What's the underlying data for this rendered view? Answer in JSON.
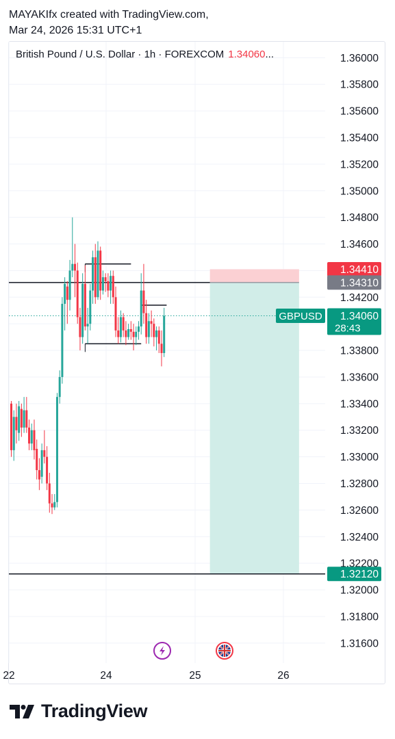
{
  "header": {
    "line1": "MAYAKIfx created with TradingView.com,",
    "line2": "Mar 24, 2026 15:31 UTC+1"
  },
  "legend": {
    "title": "British Pound / U.S. Dollar · 1h · FOREXCOM",
    "price": "1.34060",
    "ellipsis": "..."
  },
  "footer": {
    "brand": "TradingView",
    "logo_icon": "tradingview-logo-icon"
  },
  "colors": {
    "up": "#26a69a",
    "up_dark": "#089981",
    "down": "#f23645",
    "grid": "#f0f3fa",
    "target_zone": "#d1ede8",
    "stop_zone": "#fbd0d3",
    "text": "#131722",
    "gray_label": "#787b86"
  },
  "chart_data": {
    "type": "candlestick",
    "symbol": "GBPUSD",
    "title": "British Pound / U.S. Dollar · 1h · FOREXCOM",
    "x_ticks": [
      "22",
      "24",
      "25",
      "26"
    ],
    "y_ticks": [
      "1.36000",
      "1.35800",
      "1.35600",
      "1.35400",
      "1.35200",
      "1.35000",
      "1.34800",
      "1.34600",
      "1.34400",
      "1.34200",
      "1.34000",
      "1.33800",
      "1.33600",
      "1.33400",
      "1.33200",
      "1.33000",
      "1.32800",
      "1.32600",
      "1.32400",
      "1.32200",
      "1.32000",
      "1.31800",
      "1.31600"
    ],
    "ylim": [
      1.3145,
      1.3612
    ],
    "grid": true,
    "last_price": 1.3406,
    "last_price_label": "1.34060",
    "countdown": "28:43",
    "price_labels": [
      {
        "value": 1.3441,
        "text": "1.34410",
        "kind": "stop"
      },
      {
        "value": 1.3431,
        "text": "1.34310",
        "kind": "entry"
      },
      {
        "value": 1.3212,
        "text": "1.32120",
        "kind": "target"
      }
    ],
    "position": {
      "entry": 1.3431,
      "stop": 1.3441,
      "target": 1.3212,
      "start_index": 78,
      "end_index": 113
    },
    "levels": [
      {
        "value": 1.3431,
        "from_index": -1,
        "to_index": 78
      },
      {
        "value": 1.3212,
        "from_index": -1,
        "to_index": 128
      },
      {
        "value": 1.3445,
        "from_index": 29,
        "to_index": 47
      },
      {
        "value": 1.3385,
        "from_index": 29,
        "to_index": 51
      },
      {
        "value": 1.3414,
        "from_index": 51,
        "to_index": 61
      }
    ],
    "candles": [
      [
        1.334,
        1.3342,
        1.33,
        1.3305
      ],
      [
        1.3305,
        1.3335,
        1.3297,
        1.333
      ],
      [
        1.333,
        1.334,
        1.331,
        1.332
      ],
      [
        1.3318,
        1.3342,
        1.3312,
        1.3338
      ],
      [
        1.3336,
        1.334,
        1.3315,
        1.3322
      ],
      [
        1.3322,
        1.3345,
        1.3318,
        1.3335
      ],
      [
        1.3335,
        1.3345,
        1.3318,
        1.3322
      ],
      [
        1.3322,
        1.3328,
        1.3305,
        1.331
      ],
      [
        1.331,
        1.3325,
        1.3305,
        1.332
      ],
      [
        1.332,
        1.3328,
        1.3298,
        1.3305
      ],
      [
        1.3306,
        1.3313,
        1.3283,
        1.329
      ],
      [
        1.329,
        1.3299,
        1.3275,
        1.3283
      ],
      [
        1.3285,
        1.331,
        1.328,
        1.3305
      ],
      [
        1.3305,
        1.332,
        1.3295,
        1.33
      ],
      [
        1.33,
        1.3308,
        1.3275,
        1.328
      ],
      [
        1.328,
        1.3288,
        1.3258,
        1.3265
      ],
      [
        1.3265,
        1.3272,
        1.3257,
        1.3262
      ],
      [
        1.3262,
        1.3272,
        1.326,
        1.3266
      ],
      [
        1.3266,
        1.3348,
        1.3262,
        1.3345
      ],
      [
        1.3345,
        1.3365,
        1.334,
        1.336
      ],
      [
        1.336,
        1.342,
        1.3355,
        1.3415
      ],
      [
        1.3415,
        1.3435,
        1.3395,
        1.343
      ],
      [
        1.3428,
        1.3432,
        1.34,
        1.3418
      ],
      [
        1.3418,
        1.3448,
        1.341,
        1.344
      ],
      [
        1.344,
        1.348,
        1.3435,
        1.3445
      ],
      [
        1.3445,
        1.346,
        1.342,
        1.344
      ],
      [
        1.344,
        1.3446,
        1.34,
        1.3405
      ],
      [
        1.3405,
        1.3412,
        1.338,
        1.339
      ],
      [
        1.339,
        1.3438,
        1.3385,
        1.343
      ],
      [
        1.343,
        1.3444,
        1.3395,
        1.3398
      ],
      [
        1.3398,
        1.3412,
        1.3385,
        1.34
      ],
      [
        1.34,
        1.343,
        1.3395,
        1.3425
      ],
      [
        1.3425,
        1.3455,
        1.3415,
        1.345
      ],
      [
        1.345,
        1.346,
        1.3415,
        1.342
      ],
      [
        1.342,
        1.3462,
        1.3418,
        1.3455
      ],
      [
        1.3455,
        1.3458,
        1.3418,
        1.3425
      ],
      [
        1.3425,
        1.344,
        1.3422,
        1.3435
      ],
      [
        1.3435,
        1.3438,
        1.3424,
        1.3432
      ],
      [
        1.3432,
        1.3438,
        1.342,
        1.3425
      ],
      [
        1.3425,
        1.344,
        1.3415,
        1.3436
      ],
      [
        1.3436,
        1.344,
        1.3415,
        1.342
      ],
      [
        1.342,
        1.3428,
        1.339,
        1.3395
      ],
      [
        1.3395,
        1.3405,
        1.3385,
        1.339
      ],
      [
        1.339,
        1.341,
        1.3386,
        1.3405
      ],
      [
        1.3405,
        1.3408,
        1.339,
        1.3395
      ],
      [
        1.3395,
        1.3402,
        1.3384,
        1.339
      ],
      [
        1.339,
        1.34,
        1.3388,
        1.3396
      ],
      [
        1.3396,
        1.3402,
        1.3388,
        1.3394
      ],
      [
        1.3394,
        1.34,
        1.338,
        1.339
      ],
      [
        1.339,
        1.3398,
        1.3384,
        1.3394
      ],
      [
        1.3394,
        1.3402,
        1.3388,
        1.3398
      ],
      [
        1.3398,
        1.3438,
        1.3392,
        1.3425
      ],
      [
        1.3425,
        1.3445,
        1.34,
        1.3408
      ],
      [
        1.3408,
        1.3418,
        1.3385,
        1.339
      ],
      [
        1.339,
        1.3408,
        1.3385,
        1.3402
      ],
      [
        1.3402,
        1.341,
        1.339,
        1.34
      ],
      [
        1.34,
        1.3404,
        1.3383,
        1.339
      ],
      [
        1.339,
        1.3398,
        1.338,
        1.3395
      ],
      [
        1.3395,
        1.3398,
        1.3378,
        1.3385
      ],
      [
        1.3385,
        1.3395,
        1.3368,
        1.3378
      ],
      [
        1.3378,
        1.3412,
        1.3375,
        1.3406
      ]
    ]
  }
}
